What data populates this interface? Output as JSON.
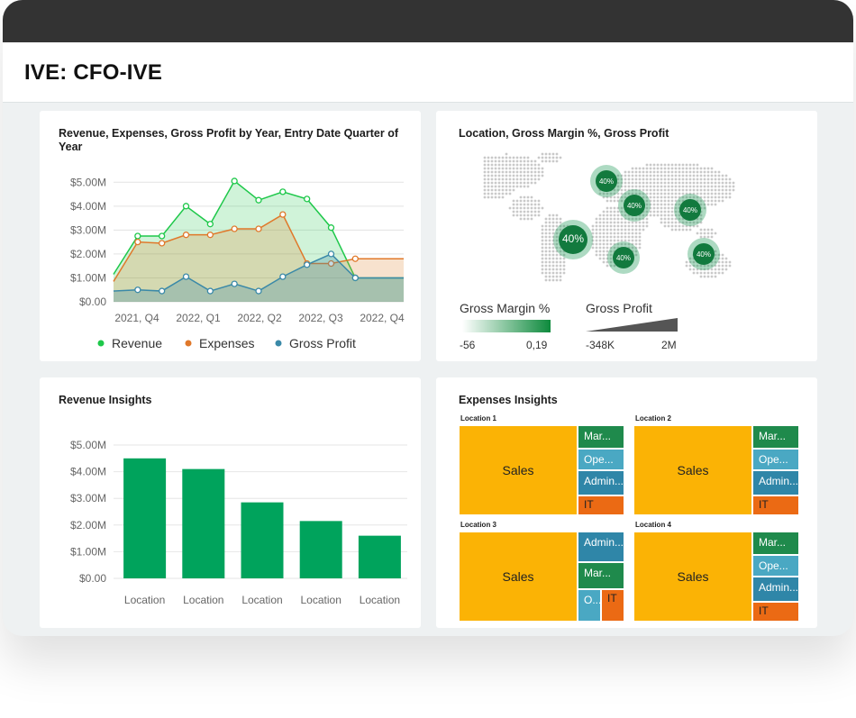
{
  "app": {
    "title": "IVE: CFO-IVE"
  },
  "colors": {
    "revenue": "#1ec84a",
    "expenses": "#e0782a",
    "gross_profit": "#3a89a8",
    "bar": "#00a35c",
    "sales": "#fbb305",
    "marketing": "#1f8a4c",
    "operations": "#4aa8c3",
    "admin": "#2f86a8",
    "it": "#eb6a14"
  },
  "line_chart": {
    "title": "Revenue, Expenses, Gross Profit by Year, Entry Date Quarter of Year",
    "legend": [
      "Revenue",
      "Expenses",
      "Gross Profit"
    ]
  },
  "map_card": {
    "title": "Location, Gross Margin %, Gross Profit",
    "bubbles": [
      {
        "label": "40%"
      },
      {
        "label": "40%"
      },
      {
        "label": "40%"
      },
      {
        "label": "40%"
      },
      {
        "label": "40%"
      },
      {
        "label": "40%"
      }
    ],
    "gross_margin_legend": {
      "title": "Gross Margin %",
      "min": "-56",
      "max": "0,19"
    },
    "gross_profit_legend": {
      "title": "Gross Profit",
      "min": "-348K",
      "max": "2M"
    }
  },
  "bar_card": {
    "title": "Revenue Insights"
  },
  "treemap_card": {
    "title": "Expenses Insights",
    "panels": [
      {
        "location": "Location 1",
        "cells": [
          "Sales",
          "Mar...",
          "Ope...",
          "Admin...",
          "IT"
        ]
      },
      {
        "location": "Location 2",
        "cells": [
          "Sales",
          "Mar...",
          "Ope...",
          "Admin...",
          "IT"
        ]
      },
      {
        "location": "Location 3",
        "cells": [
          "Sales",
          "Admin...",
          "Mar...",
          "O...",
          "IT"
        ]
      },
      {
        "location": "Location 4",
        "cells": [
          "Sales",
          "Mar...",
          "Ope...",
          "Admin...",
          "IT"
        ]
      }
    ]
  },
  "chart_data": [
    {
      "type": "line",
      "title": "Revenue, Expenses, Gross Profit by Year, Entry Date Quarter of Year",
      "x": [
        "2021, Q4 a",
        "2021, Q4 b",
        "2022, Q1 a",
        "2022, Q1 b",
        "2022, Q1 c",
        "2022, Q2 a",
        "2022, Q2 b",
        "2022, Q2 c",
        "2022, Q3 a",
        "2022, Q3 b",
        "2022, Q3 c",
        "2022, Q4 a",
        "2022, Q4 b"
      ],
      "tick_labels": [
        "2021, Q4",
        "2022, Q1",
        "2022, Q2",
        "2022, Q3",
        "2022, Q4"
      ],
      "series": [
        {
          "name": "Revenue",
          "values": [
            1.15,
            2.75,
            2.75,
            4.0,
            3.25,
            5.05,
            4.25,
            4.6,
            4.3,
            3.1,
            1.0,
            1.0,
            1.0
          ]
        },
        {
          "name": "Expenses",
          "values": [
            0.85,
            2.5,
            2.45,
            2.8,
            2.8,
            3.05,
            3.05,
            3.65,
            1.6,
            1.6,
            1.8,
            1.8,
            1.8
          ]
        },
        {
          "name": "Gross Profit",
          "values": [
            0.45,
            0.5,
            0.45,
            1.05,
            0.45,
            0.75,
            0.45,
            1.05,
            1.55,
            2.0,
            1.0,
            1.0,
            1.0
          ]
        }
      ],
      "y_ticks": [
        "$0.00",
        "$1.00M",
        "$2.00M",
        "$3.00M",
        "$4.00M",
        "$5.00M"
      ],
      "ylim": [
        0,
        5.5
      ],
      "legend": "bottom"
    },
    {
      "type": "bar",
      "title": "Revenue Insights",
      "categories": [
        "Location",
        "Location",
        "Location",
        "Location",
        "Location"
      ],
      "values": [
        4.5,
        4.1,
        2.85,
        2.15,
        1.6
      ],
      "y_ticks": [
        "$0.00",
        "$1.00M",
        "$2.00M",
        "$3.00M",
        "$4.00M",
        "$5.00M"
      ],
      "ylim": [
        0,
        5
      ]
    }
  ]
}
